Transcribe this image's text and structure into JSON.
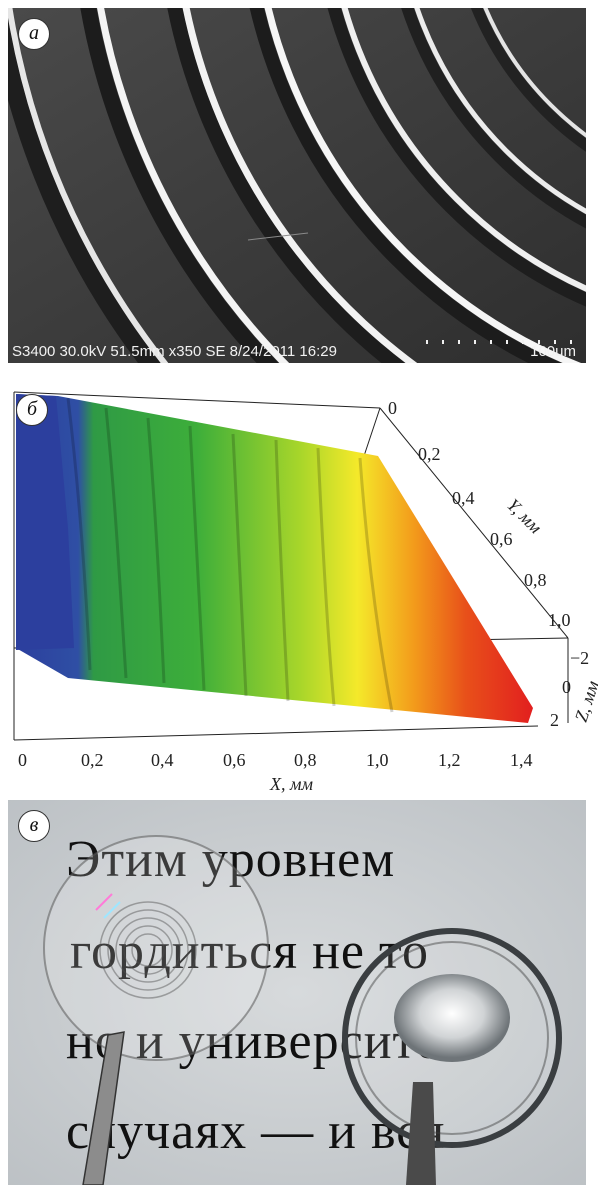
{
  "panels": {
    "a": {
      "label": "а",
      "sem_info": "S3400 30.0kV 51.5mm x350 SE  8/24/2011 16:29",
      "scale_label": "100um"
    },
    "b": {
      "label": "б",
      "x_axis_label": "X, мм",
      "y_axis_label": "Y, мм",
      "z_axis_label": "Z, мм",
      "x_ticks": [
        "0",
        "0,2",
        "0,4",
        "0,6",
        "0,8",
        "1,0",
        "1,2",
        "1,4"
      ],
      "y_ticks": [
        "0",
        "0,2",
        "0,4",
        "0,6",
        "0,8",
        "1,0"
      ],
      "z_ticks": [
        "−2",
        "0",
        "2"
      ]
    },
    "c": {
      "label": "в",
      "text_lines": [
        "Этим  уровнем",
        "гордиться не то",
        "но и университе",
        "случаях — и вся"
      ]
    }
  },
  "colors": {
    "surface_low": "#2c3f9e",
    "surface_mid": "#3dae3a",
    "surface_high": "#e21f1f"
  }
}
